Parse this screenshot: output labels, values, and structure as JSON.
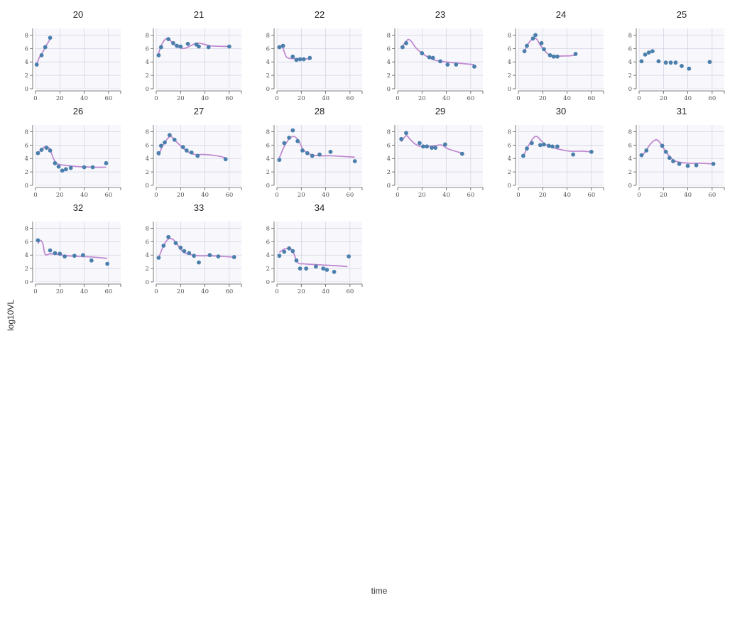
{
  "colors": {
    "point": "#4a7fab",
    "curve": "#c08ad0",
    "plot_bg": "#f8f8fc",
    "grid": "#c9c9dd",
    "axis": "#555555"
  },
  "chart_data": {
    "type": "scatter",
    "layout": "faceted grid, 6 columns",
    "xlabel": "time",
    "ylabel": "log10VL",
    "xlim": [
      0,
      70
    ],
    "ylim": [
      0,
      9
    ],
    "x_ticks": [
      "0",
      "20",
      "40",
      "60"
    ],
    "y_ticks": [
      "0",
      "2",
      "4",
      "6",
      "8"
    ],
    "grid": true,
    "legend": "none",
    "panels": [
      {
        "title": "20",
        "points": [
          [
            1,
            3.6
          ],
          [
            5,
            5
          ],
          [
            8,
            6.2
          ],
          [
            12,
            7.6
          ]
        ],
        "curve": [
          [
            1,
            3.7
          ],
          [
            3,
            4.6
          ],
          [
            5,
            5.2
          ],
          [
            7,
            5.8
          ],
          [
            9,
            6.5
          ],
          [
            12,
            7.4
          ]
        ]
      },
      {
        "title": "21",
        "points": [
          [
            2,
            5
          ],
          [
            4,
            6.2
          ],
          [
            10,
            7.4
          ],
          [
            14,
            6.8
          ],
          [
            17,
            6.4
          ],
          [
            20,
            6.3
          ],
          [
            26,
            6.7
          ],
          [
            33,
            6.6
          ],
          [
            35,
            6.3
          ],
          [
            43,
            6.2
          ],
          [
            60,
            6.3
          ]
        ],
        "curve": [
          [
            2,
            5.3
          ],
          [
            4,
            6.4
          ],
          [
            7,
            7.3
          ],
          [
            10,
            7.5
          ],
          [
            13,
            6.9
          ],
          [
            17,
            6.3
          ],
          [
            22,
            6
          ],
          [
            27,
            6.3
          ],
          [
            33,
            6.8
          ],
          [
            38,
            6.7
          ],
          [
            45,
            6.4
          ],
          [
            60,
            6.3
          ]
        ]
      },
      {
        "title": "22",
        "points": [
          [
            2,
            6.2
          ],
          [
            5,
            6.4
          ],
          [
            13,
            4.8
          ],
          [
            16,
            4.3
          ],
          [
            19,
            4.4
          ],
          [
            22,
            4.4
          ],
          [
            27,
            4.6
          ]
        ],
        "curve": [
          [
            2,
            5.9
          ],
          [
            4,
            6.5
          ],
          [
            6,
            5.5
          ],
          [
            8,
            4.7
          ],
          [
            12,
            4.5
          ],
          [
            16,
            4.5
          ],
          [
            22,
            4.5
          ],
          [
            27,
            4.4
          ]
        ]
      },
      {
        "title": "23",
        "points": [
          [
            4,
            6.2
          ],
          [
            7,
            6.8
          ],
          [
            20,
            5.3
          ],
          [
            26,
            4.7
          ],
          [
            29,
            4.6
          ],
          [
            35,
            4.1
          ],
          [
            41,
            3.6
          ],
          [
            48,
            3.6
          ],
          [
            63,
            3.3
          ]
        ],
        "curve": [
          [
            4,
            6.3
          ],
          [
            8,
            7.3
          ],
          [
            11,
            7.1
          ],
          [
            15,
            6.1
          ],
          [
            20,
            5.3
          ],
          [
            25,
            4.7
          ],
          [
            30,
            4.3
          ],
          [
            35,
            4.1
          ],
          [
            45,
            3.9
          ],
          [
            63,
            3.6
          ]
        ]
      },
      {
        "title": "24",
        "points": [
          [
            5,
            5.6
          ],
          [
            7,
            6.4
          ],
          [
            12,
            7.5
          ],
          [
            14,
            8
          ],
          [
            19,
            6.8
          ],
          [
            21,
            5.9
          ],
          [
            26,
            5
          ],
          [
            29,
            4.8
          ],
          [
            32,
            4.8
          ],
          [
            47,
            5.2
          ]
        ],
        "curve": [
          [
            5,
            5.6
          ],
          [
            8,
            6.7
          ],
          [
            12,
            7.5
          ],
          [
            15,
            7.4
          ],
          [
            18,
            6.5
          ],
          [
            21,
            5.8
          ],
          [
            25,
            5.1
          ],
          [
            30,
            4.9
          ],
          [
            40,
            4.9
          ],
          [
            47,
            5
          ]
        ]
      },
      {
        "title": "25",
        "points": [
          [
            2,
            4.1
          ],
          [
            5,
            5.1
          ],
          [
            8,
            5.4
          ],
          [
            11,
            5.6
          ],
          [
            16,
            4.1
          ],
          [
            22,
            3.9
          ],
          [
            26,
            3.9
          ],
          [
            30,
            3.9
          ],
          [
            35,
            3.4
          ],
          [
            41,
            3
          ],
          [
            58,
            4
          ]
        ]
      },
      {
        "title": "26",
        "points": [
          [
            2,
            4.8
          ],
          [
            5,
            5.3
          ],
          [
            9,
            5.6
          ],
          [
            12,
            5.2
          ],
          [
            16,
            3.3
          ],
          [
            19,
            2.8
          ],
          [
            22,
            2.2
          ],
          [
            25,
            2.4
          ],
          [
            29,
            2.6
          ],
          [
            40,
            2.7
          ],
          [
            47,
            2.7
          ],
          [
            58,
            3.3
          ]
        ],
        "curve": [
          [
            2,
            4.6
          ],
          [
            5,
            5.4
          ],
          [
            9,
            5.8
          ],
          [
            12,
            5.3
          ],
          [
            15,
            3.9
          ],
          [
            18,
            3.2
          ],
          [
            24,
            3
          ],
          [
            35,
            2.8
          ],
          [
            50,
            2.7
          ],
          [
            58,
            2.7
          ]
        ]
      },
      {
        "title": "27",
        "points": [
          [
            2,
            4.8
          ],
          [
            4,
            5.9
          ],
          [
            7,
            6.4
          ],
          [
            11,
            7.5
          ],
          [
            15,
            6.8
          ],
          [
            22,
            5.7
          ],
          [
            25,
            5.2
          ],
          [
            29,
            4.9
          ],
          [
            34,
            4.4
          ],
          [
            57,
            3.9
          ]
        ],
        "curve": [
          [
            2,
            4.4
          ],
          [
            5,
            5.8
          ],
          [
            9,
            6.9
          ],
          [
            12,
            7.3
          ],
          [
            15,
            6.8
          ],
          [
            20,
            5.9
          ],
          [
            26,
            5
          ],
          [
            32,
            4.6
          ],
          [
            40,
            4.6
          ],
          [
            50,
            4.4
          ],
          [
            57,
            4.1
          ]
        ]
      },
      {
        "title": "28",
        "points": [
          [
            2,
            3.8
          ],
          [
            6,
            6.3
          ],
          [
            10,
            7.1
          ],
          [
            13,
            8.2
          ],
          [
            17,
            6.6
          ],
          [
            21,
            5.2
          ],
          [
            25,
            4.8
          ],
          [
            29,
            4.4
          ],
          [
            35,
            4.6
          ],
          [
            44,
            5
          ],
          [
            64,
            3.6
          ]
        ],
        "curve": [
          [
            2,
            4.1
          ],
          [
            6,
            5.8
          ],
          [
            10,
            6.9
          ],
          [
            14,
            7.3
          ],
          [
            18,
            6.6
          ],
          [
            22,
            5.2
          ],
          [
            28,
            4.6
          ],
          [
            35,
            4.4
          ],
          [
            45,
            4.4
          ],
          [
            64,
            4.2
          ]
        ]
      },
      {
        "title": "29",
        "points": [
          [
            3,
            6.9
          ],
          [
            7,
            7.8
          ],
          [
            18,
            6.3
          ],
          [
            21,
            5.8
          ],
          [
            24,
            5.8
          ],
          [
            28,
            5.6
          ],
          [
            31,
            5.6
          ],
          [
            39,
            6.1
          ],
          [
            53,
            4.7
          ]
        ],
        "curve": [
          [
            3,
            6.5
          ],
          [
            7,
            7.4
          ],
          [
            10,
            6.9
          ],
          [
            14,
            6.2
          ],
          [
            19,
            5.8
          ],
          [
            24,
            5.8
          ],
          [
            30,
            5.9
          ],
          [
            36,
            6
          ],
          [
            42,
            5.4
          ],
          [
            53,
            4.8
          ]
        ]
      },
      {
        "title": "30",
        "points": [
          [
            4,
            4.4
          ],
          [
            7,
            5.5
          ],
          [
            11,
            6.3
          ],
          [
            18,
            6
          ],
          [
            21,
            6.1
          ],
          [
            25,
            5.9
          ],
          [
            28,
            5.8
          ],
          [
            32,
            5.8
          ],
          [
            45,
            4.6
          ],
          [
            60,
            5
          ]
        ],
        "curve": [
          [
            4,
            4.3
          ],
          [
            8,
            5.8
          ],
          [
            12,
            7
          ],
          [
            15,
            7.3
          ],
          [
            18,
            6.8
          ],
          [
            22,
            6.1
          ],
          [
            27,
            5.7
          ],
          [
            33,
            5.4
          ],
          [
            42,
            5.1
          ],
          [
            52,
            5.1
          ],
          [
            60,
            5
          ]
        ]
      },
      {
        "title": "31",
        "points": [
          [
            2,
            4.5
          ],
          [
            6,
            5.2
          ],
          [
            19,
            5.9
          ],
          [
            22,
            5
          ],
          [
            25,
            4.1
          ],
          [
            28,
            3.6
          ],
          [
            33,
            3.2
          ],
          [
            40,
            2.9
          ],
          [
            47,
            3
          ],
          [
            61,
            3.2
          ]
        ],
        "curve": [
          [
            2,
            4.2
          ],
          [
            6,
            5.3
          ],
          [
            10,
            6.3
          ],
          [
            14,
            6.8
          ],
          [
            17,
            6.4
          ],
          [
            21,
            5.3
          ],
          [
            25,
            4.3
          ],
          [
            30,
            3.6
          ],
          [
            40,
            3.3
          ],
          [
            50,
            3.3
          ],
          [
            61,
            3.2
          ]
        ]
      },
      {
        "title": "32",
        "points": [
          [
            2,
            6.2
          ],
          [
            12,
            4.7
          ],
          [
            16,
            4.3
          ],
          [
            20,
            4.2
          ],
          [
            24,
            3.8
          ],
          [
            32,
            3.9
          ],
          [
            39,
            4
          ],
          [
            46,
            3.2
          ],
          [
            59,
            2.7
          ]
        ],
        "curve": [
          [
            2,
            5.7
          ],
          [
            4,
            6.2
          ],
          [
            6,
            5.7
          ],
          [
            8,
            4.1
          ],
          [
            12,
            4.2
          ],
          [
            18,
            4.1
          ],
          [
            26,
            3.9
          ],
          [
            36,
            3.8
          ],
          [
            48,
            3.7
          ],
          [
            59,
            3.5
          ]
        ]
      },
      {
        "title": "33",
        "points": [
          [
            2,
            3.6
          ],
          [
            6,
            5.4
          ],
          [
            10,
            6.7
          ],
          [
            16,
            5.8
          ],
          [
            20,
            5.1
          ],
          [
            23,
            4.6
          ],
          [
            27,
            4.3
          ],
          [
            31,
            3.9
          ],
          [
            35,
            2.9
          ],
          [
            44,
            4
          ],
          [
            51,
            3.8
          ],
          [
            64,
            3.7
          ]
        ],
        "curve": [
          [
            2,
            3.6
          ],
          [
            6,
            5.4
          ],
          [
            10,
            6.4
          ],
          [
            14,
            6.3
          ],
          [
            18,
            5.4
          ],
          [
            22,
            4.5
          ],
          [
            27,
            4.1
          ],
          [
            35,
            3.9
          ],
          [
            45,
            3.9
          ],
          [
            55,
            3.8
          ],
          [
            64,
            3.7
          ]
        ]
      },
      {
        "title": "34",
        "points": [
          [
            2,
            3.9
          ],
          [
            6,
            4.5
          ],
          [
            10,
            5
          ],
          [
            13,
            4.6
          ],
          [
            16,
            3.2
          ],
          [
            19,
            2
          ],
          [
            24,
            2
          ],
          [
            32,
            2.3
          ],
          [
            38,
            2
          ],
          [
            41,
            1.8
          ],
          [
            47,
            1.5
          ],
          [
            59,
            3.8
          ]
        ],
        "curve": [
          [
            2,
            4.4
          ],
          [
            6,
            4.9
          ],
          [
            10,
            5
          ],
          [
            13,
            4.6
          ],
          [
            17,
            2.9
          ],
          [
            22,
            2.7
          ],
          [
            30,
            2.6
          ],
          [
            40,
            2.5
          ],
          [
            50,
            2.4
          ],
          [
            58,
            2.3
          ]
        ]
      }
    ]
  }
}
